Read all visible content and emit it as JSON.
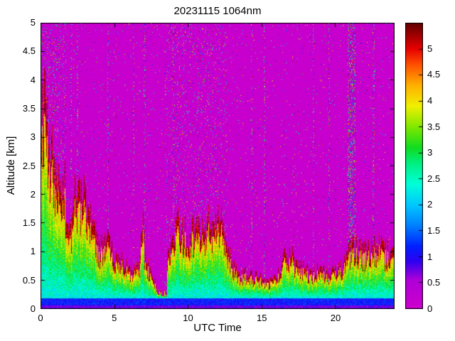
{
  "colors": {
    "background": "#ffffff",
    "axis": "#000000"
  },
  "chart_data": {
    "type": "heatmap",
    "title": "20231115 1064nm",
    "xlabel": "UTC Time",
    "ylabel": "Altitude [km]",
    "xlim": [
      0,
      24
    ],
    "ylim": [
      0,
      5
    ],
    "xticks": [
      0,
      5,
      10,
      15,
      20
    ],
    "yticks": [
      0,
      0.5,
      1,
      1.5,
      2,
      2.5,
      3,
      3.5,
      4,
      4.5,
      5
    ],
    "colorbar": {
      "range": [
        0,
        5.5
      ],
      "ticks": [
        0,
        0.5,
        1,
        1.5,
        2,
        2.5,
        3,
        3.5,
        4,
        4.5,
        5
      ],
      "position": "right"
    },
    "colormap": [
      [
        0.0,
        "#cc00cc"
      ],
      [
        0.55,
        "#b000d8"
      ],
      [
        0.9,
        "#3000f0"
      ],
      [
        1.2,
        "#0020ff"
      ],
      [
        1.6,
        "#0080ff"
      ],
      [
        2.0,
        "#00c8ff"
      ],
      [
        2.4,
        "#00ffd8"
      ],
      [
        2.8,
        "#00f080"
      ],
      [
        3.1,
        "#10dc20"
      ],
      [
        3.5,
        "#80e800"
      ],
      [
        3.9,
        "#f0f000"
      ],
      [
        4.3,
        "#ffb000"
      ],
      [
        4.7,
        "#ff5000"
      ],
      [
        5.0,
        "#e80000"
      ],
      [
        5.2,
        "#b00000"
      ],
      [
        5.5,
        "#600000"
      ]
    ],
    "background_value": 0,
    "surface_blue_band_top_km": 0.18,
    "boundary_layer": {
      "x": [
        0,
        0.5,
        1,
        1.5,
        2,
        2.5,
        3,
        3.5,
        4,
        4.5,
        5,
        5.5,
        6,
        6.5,
        7,
        7.5,
        8,
        8.5,
        9,
        9.5,
        10,
        10.5,
        11,
        11.5,
        12,
        12.5,
        13,
        13.5,
        14,
        14.5,
        15,
        15.5,
        16,
        16.5,
        17,
        17.5,
        18,
        18.5,
        19,
        19.5,
        20,
        20.5,
        21,
        21.5,
        22,
        22.5,
        23,
        23.5,
        24
      ],
      "top_km": [
        1.9,
        1.7,
        1.55,
        1.75,
        1.35,
        1.85,
        1.9,
        1.3,
        1.05,
        1.2,
        0.85,
        0.8,
        0.7,
        0.65,
        0.9,
        0.6,
        0.3,
        0.8,
        1.25,
        1.45,
        1.2,
        1.4,
        1.3,
        1.5,
        1.45,
        1.25,
        0.75,
        0.55,
        0.6,
        0.55,
        0.5,
        0.42,
        0.5,
        0.8,
        0.9,
        0.7,
        0.65,
        0.6,
        0.65,
        0.6,
        0.62,
        0.7,
        1.0,
        1.05,
        0.95,
        1.0,
        1.05,
        0.95,
        0.9
      ]
    },
    "plumes": [
      [
        0.05,
        4.1
      ],
      [
        0.25,
        3.8
      ],
      [
        0.45,
        3.4
      ],
      [
        0.7,
        3.0
      ],
      [
        0.95,
        2.5
      ],
      [
        1.25,
        2.2
      ],
      [
        1.6,
        2.3
      ],
      [
        2.3,
        2.05
      ],
      [
        2.65,
        2.0
      ],
      [
        2.95,
        2.1
      ],
      [
        3.25,
        1.7
      ],
      [
        4.6,
        1.4
      ],
      [
        6.9,
        1.55
      ],
      [
        9.3,
        1.6
      ],
      [
        10.6,
        1.55
      ],
      [
        11.35,
        1.6
      ],
      [
        11.9,
        1.75
      ],
      [
        12.3,
        1.6
      ],
      [
        16.6,
        1.1
      ],
      [
        17.05,
        1.05
      ],
      [
        21.2,
        1.2
      ],
      [
        23.2,
        1.15
      ]
    ],
    "noise_bands": [
      [
        0,
        1.7,
        0.09
      ],
      [
        8.45,
        12.7,
        0.06
      ],
      [
        20.85,
        21.35,
        0.28
      ]
    ],
    "noise_columns": [
      2.05,
      2.5,
      4.55,
      6.3,
      7.05,
      9.0,
      14.3,
      15.2,
      18.5,
      19.6,
      22.6
    ],
    "gaps": [
      [
        7.85,
        8.55
      ]
    ]
  }
}
